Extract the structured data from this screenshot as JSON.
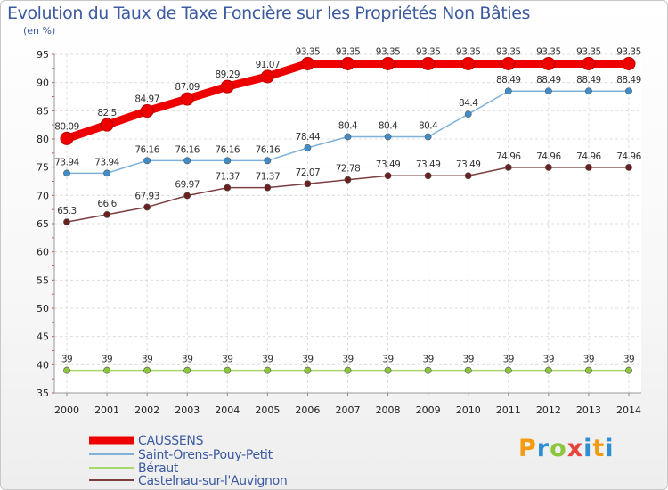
{
  "chart_data": {
    "type": "line",
    "title": "Evolution du Taux de Taxe Foncière sur les Propriétés Non Bâties",
    "ylabel": "(en %)",
    "xlabel": "",
    "ylim": [
      35,
      95
    ],
    "yticks": [
      35,
      40,
      45,
      50,
      55,
      60,
      65,
      70,
      75,
      80,
      85,
      90,
      95
    ],
    "categories": [
      "2000",
      "2001",
      "2002",
      "2003",
      "2004",
      "2005",
      "2006",
      "2007",
      "2008",
      "2009",
      "2010",
      "2011",
      "2012",
      "2013",
      "2014"
    ],
    "series": [
      {
        "name": "CAUSSENS",
        "color": "#ee0000",
        "marker": "#ee0000",
        "values": [
          80.09,
          82.5,
          84.97,
          87.09,
          89.29,
          91.07,
          93.35,
          93.35,
          93.35,
          93.35,
          93.35,
          93.35,
          93.35,
          93.35,
          93.35
        ],
        "labels": [
          "80.09",
          "82.5",
          "84.97",
          "87.09",
          "89.29",
          "91.07",
          "93.35",
          "93.35",
          "93.35",
          "93.35",
          "93.35",
          "93.35",
          "93.35",
          "93.35",
          "93.35"
        ]
      },
      {
        "name": "Saint-Orens-Pouy-Petit",
        "color": "#7fb1d9",
        "marker": "#3f8ec9",
        "values": [
          73.94,
          73.94,
          76.16,
          76.16,
          76.16,
          76.16,
          78.44,
          80.4,
          80.4,
          80.4,
          84.4,
          88.49,
          88.49,
          88.49,
          88.49
        ],
        "labels": [
          "73.94",
          "73.94",
          "76.16",
          "76.16",
          "76.16",
          "76.16",
          "78.44",
          "80.4",
          "80.4",
          "80.4",
          "84.4",
          "88.49",
          "88.49",
          "88.49",
          "88.49"
        ]
      },
      {
        "name": "Béraut",
        "color": "#a6d96a",
        "marker": "#8cc63f",
        "values": [
          39,
          39,
          39,
          39,
          39,
          39,
          39,
          39,
          39,
          39,
          39,
          39,
          39,
          39,
          39
        ],
        "labels": [
          "39",
          "39",
          "39",
          "39",
          "39",
          "39",
          "39",
          "39",
          "39",
          "39",
          "39",
          "39",
          "39",
          "39",
          "39"
        ]
      },
      {
        "name": "Castelnau-sur-l'Auvignon",
        "color": "#7b3f3f",
        "marker": "#6b1f1f",
        "values": [
          65.3,
          66.6,
          67.93,
          69.97,
          71.37,
          71.37,
          72.07,
          72.78,
          73.49,
          73.49,
          73.49,
          74.96,
          74.96,
          74.96,
          74.96
        ],
        "labels": [
          "65.3",
          "66.6",
          "67.93",
          "69.97",
          "71.37",
          "71.37",
          "72.07",
          "72.78",
          "73.49",
          "73.49",
          "73.49",
          "74.96",
          "74.96",
          "74.96",
          "74.96"
        ]
      }
    ],
    "legend": "bottom-left",
    "grid": true
  },
  "logo": {
    "letters": [
      "P",
      "r",
      "o",
      "x",
      "i",
      "t",
      "i"
    ]
  }
}
